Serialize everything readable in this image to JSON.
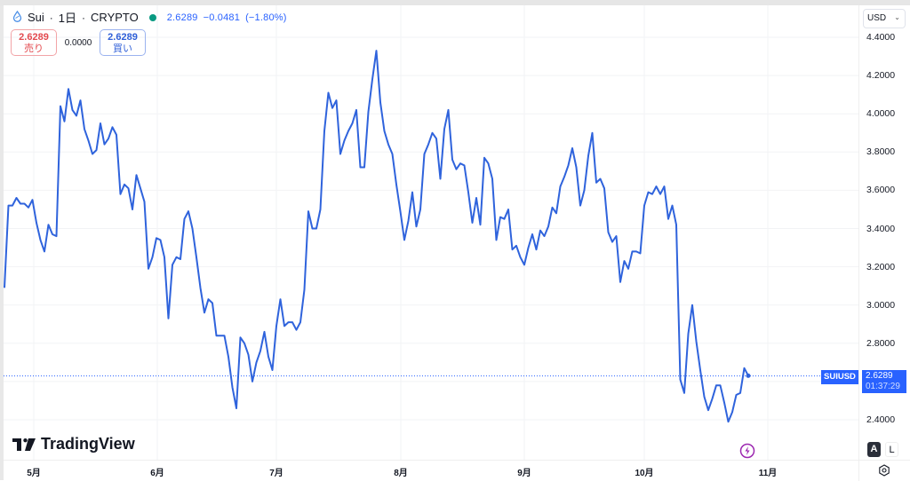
{
  "header": {
    "symbol_icon": "sui-droplet-icon",
    "symbol": "Sui",
    "interval": "1日",
    "exchange": "CRYPTO",
    "status_dot_color": "#089981",
    "last_price": "2.6289",
    "change": "−0.0481",
    "change_pct": "(−1.80%)"
  },
  "trade": {
    "sell_price": "2.6289",
    "sell_label": "売り",
    "spread": "0.0000",
    "buy_price": "2.6289",
    "buy_label": "買い"
  },
  "price_axis": {
    "currency": "USD",
    "ticks": [
      "4.4000",
      "4.2000",
      "4.0000",
      "3.8000",
      "3.6000",
      "3.4000",
      "3.2000",
      "3.0000",
      "2.8000",
      "2.4000"
    ]
  },
  "time_axis": {
    "ticks": [
      "5月",
      "6月",
      "7月",
      "8月",
      "9月",
      "10月",
      "11月"
    ]
  },
  "current": {
    "symbol_tag": "SUIUSD",
    "price": "2.6289",
    "countdown": "01:37:29"
  },
  "controls": {
    "auto_label": "A",
    "log_label": "L",
    "settings_icon": "gear-icon",
    "event_icon": "lightning-icon"
  },
  "branding": {
    "logo_text": "TradingView"
  },
  "colors": {
    "line": "#2f63dc",
    "accent": "#2962ff",
    "sell": "#e34a4f",
    "buy": "#2f5fd8"
  },
  "chart_data": {
    "type": "line",
    "title": "Sui · 1日 · CRYPTO",
    "xlabel": "",
    "ylabel": "USD",
    "ylim": [
      2.32,
      4.48
    ],
    "grid": true,
    "legend_position": "top-left",
    "x_ticks": [
      "5月",
      "6月",
      "7月",
      "8月",
      "9月",
      "10月",
      "11月"
    ],
    "series": [
      {
        "name": "SUIUSD",
        "values": [
          3.09,
          3.52,
          3.52,
          3.56,
          3.53,
          3.53,
          3.51,
          3.55,
          3.43,
          3.34,
          3.28,
          3.42,
          3.37,
          3.36,
          4.04,
          3.96,
          4.13,
          4.02,
          3.99,
          4.07,
          3.92,
          3.86,
          3.79,
          3.81,
          3.95,
          3.84,
          3.87,
          3.93,
          3.89,
          3.58,
          3.63,
          3.61,
          3.5,
          3.68,
          3.61,
          3.54,
          3.19,
          3.25,
          3.35,
          3.34,
          3.25,
          2.93,
          3.21,
          3.25,
          3.24,
          3.45,
          3.49,
          3.4,
          3.25,
          3.09,
          2.96,
          3.03,
          3.01,
          2.84,
          2.84,
          2.84,
          2.73,
          2.57,
          2.46,
          2.83,
          2.8,
          2.74,
          2.6,
          2.7,
          2.76,
          2.86,
          2.73,
          2.66,
          2.89,
          3.03,
          2.89,
          2.91,
          2.91,
          2.87,
          2.91,
          3.08,
          3.49,
          3.4,
          3.4,
          3.5,
          3.91,
          4.11,
          4.03,
          4.07,
          3.79,
          3.86,
          3.91,
          3.95,
          4.02,
          3.72,
          3.72,
          4.01,
          4.18,
          4.33,
          4.06,
          3.91,
          3.84,
          3.79,
          3.63,
          3.49,
          3.34,
          3.44,
          3.59,
          3.41,
          3.5,
          3.79,
          3.84,
          3.9,
          3.87,
          3.66,
          3.92,
          4.02,
          3.76,
          3.71,
          3.74,
          3.73,
          3.59,
          3.43,
          3.56,
          3.42,
          3.77,
          3.74,
          3.66,
          3.34,
          3.46,
          3.45,
          3.5,
          3.29,
          3.31,
          3.25,
          3.21,
          3.3,
          3.37,
          3.29,
          3.39,
          3.36,
          3.41,
          3.51,
          3.48,
          3.62,
          3.67,
          3.73,
          3.82,
          3.72,
          3.52,
          3.6,
          3.78,
          3.9,
          3.64,
          3.66,
          3.61,
          3.38,
          3.33,
          3.36,
          3.12,
          3.23,
          3.19,
          3.28,
          3.28,
          3.27,
          3.52,
          3.59,
          3.58,
          3.62,
          3.58,
          3.62,
          3.45,
          3.52,
          3.42,
          2.61,
          2.54,
          2.85,
          3.0,
          2.81,
          2.66,
          2.52,
          2.45,
          2.51,
          2.58,
          2.58,
          2.49,
          2.39,
          2.44,
          2.53,
          2.54,
          2.67,
          2.63
        ]
      }
    ],
    "last_value": 2.6289,
    "annotations": [
      "SUIUSD 2.6289",
      "01:37:29"
    ]
  }
}
